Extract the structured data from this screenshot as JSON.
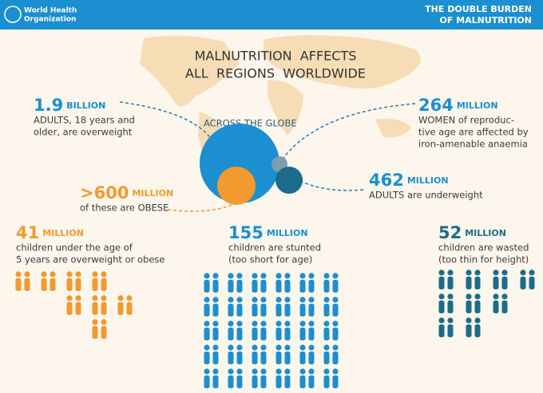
{
  "header": {
    "org_lines": [
      "World Health",
      "Organization"
    ],
    "title_lines": [
      "THE DOUBLE BURDEN",
      "OF MALNUTRITION"
    ]
  },
  "headline": [
    "MALNUTRITION  AFFECTS",
    "ALL  REGIONS  WORLDWIDE"
  ],
  "globe_label": "ACROSS THE GLOBE",
  "stats": [
    {
      "number": "1.9",
      "unit": "BILLION",
      "lines": [
        "ADULTS, 18 years and",
        "older, are overweight"
      ]
    },
    {
      "number": "264",
      "unit": "MILLION",
      "lines": [
        "WOMEN of reproduc-",
        "tive age are affected by",
        "iron-amenable anaemia"
      ]
    },
    {
      "number": ">600",
      "unit": "MILLION",
      "lines": [
        "of these are OBESE"
      ]
    },
    {
      "number": "462",
      "unit": "MILLION",
      "lines": [
        "ADULTS are underweight"
      ]
    },
    {
      "number": "41",
      "unit": "MILLION",
      "lines": [
        "children under the age of",
        "5  years are overweight or obese"
      ]
    },
    {
      "number": "155",
      "unit": "MILLION",
      "lines": [
        "children are stunted",
        "(too short for age)"
      ]
    },
    {
      "number": "52",
      "unit": "MILLION",
      "lines": [
        "children are wasted",
        "(too thin for height)"
      ]
    }
  ]
}
